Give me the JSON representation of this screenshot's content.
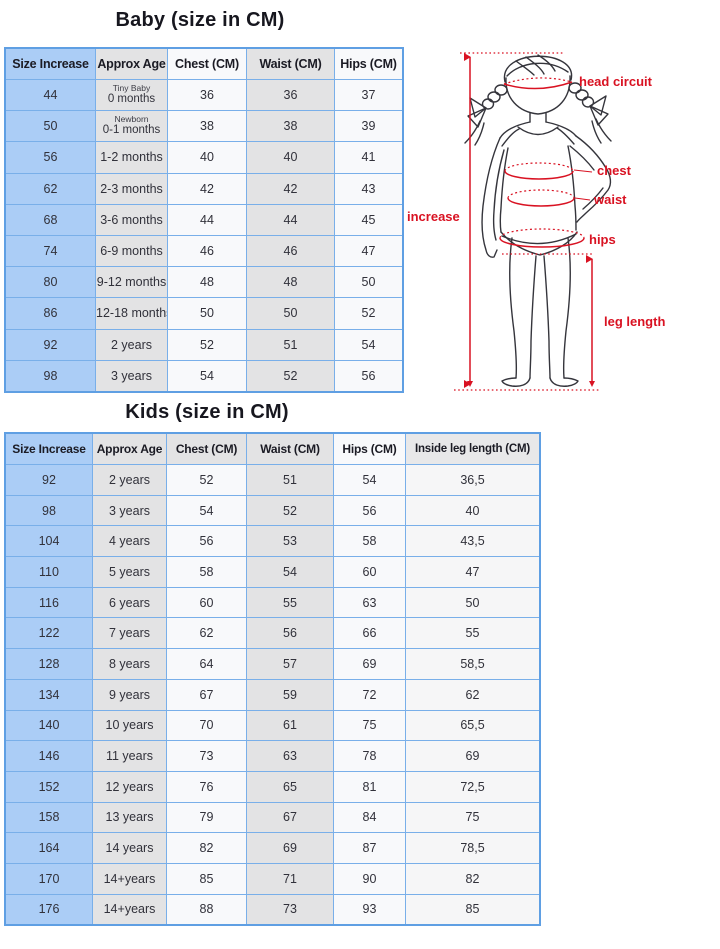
{
  "baby": {
    "title": "Baby (size in CM)",
    "headers": [
      "Size Increase",
      "Approx Age",
      "Chest (CM)",
      "Waist (CM)",
      "Hips (CM)"
    ],
    "rows": [
      [
        "44",
        {
          "note": "Tiny Baby",
          "text": "0 months"
        },
        "36",
        "36",
        "37"
      ],
      [
        "50",
        {
          "note": "Newborn",
          "text": "0-1 months"
        },
        "38",
        "38",
        "39"
      ],
      [
        "56",
        "1-2 months",
        "40",
        "40",
        "41"
      ],
      [
        "62",
        "2-3 months",
        "42",
        "42",
        "43"
      ],
      [
        "68",
        "3-6 months",
        "44",
        "44",
        "45"
      ],
      [
        "74",
        "6-9 months",
        "46",
        "46",
        "47"
      ],
      [
        "80",
        "9-12 months",
        "48",
        "48",
        "50"
      ],
      [
        "86",
        "12-18 months",
        "50",
        "50",
        "52"
      ],
      [
        "92",
        "2 years",
        "52",
        "51",
        "54"
      ],
      [
        "98",
        "3 years",
        "54",
        "52",
        "56"
      ]
    ]
  },
  "kids": {
    "title": "Kids (size in CM)",
    "headers": [
      "Size Increase",
      "Approx Age",
      "Chest (CM)",
      "Waist (CM)",
      "Hips (CM)",
      "Inside leg length (CM)"
    ],
    "rows": [
      [
        "92",
        "2 years",
        "52",
        "51",
        "54",
        "36,5"
      ],
      [
        "98",
        "3 years",
        "54",
        "52",
        "56",
        "40"
      ],
      [
        "104",
        "4 years",
        "56",
        "53",
        "58",
        "43,5"
      ],
      [
        "110",
        "5 years",
        "58",
        "54",
        "60",
        "47"
      ],
      [
        "116",
        "6 years",
        "60",
        "55",
        "63",
        "50"
      ],
      [
        "122",
        "7 years",
        "62",
        "56",
        "66",
        "55"
      ],
      [
        "128",
        "8 years",
        "64",
        "57",
        "69",
        "58,5"
      ],
      [
        "134",
        "9 years",
        "67",
        "59",
        "72",
        "62"
      ],
      [
        "140",
        "10 years",
        "70",
        "61",
        "75",
        "65,5"
      ],
      [
        "146",
        "11 years",
        "73",
        "63",
        "78",
        "69"
      ],
      [
        "152",
        "12 years",
        "76",
        "65",
        "81",
        "72,5"
      ],
      [
        "158",
        "13 years",
        "79",
        "67",
        "84",
        "75"
      ],
      [
        "164",
        "14 years",
        "82",
        "69",
        "87",
        "78,5"
      ],
      [
        "170",
        "14+years",
        "85",
        "71",
        "90",
        "82"
      ],
      [
        "176",
        "14+years",
        "88",
        "73",
        "93",
        "85"
      ]
    ]
  },
  "figure": {
    "labels": {
      "head_circuit": "head circuit",
      "chest": "chest",
      "waist": "waist",
      "hips": "hips",
      "leg_length": "leg length",
      "increase": "increase"
    },
    "accent_color": "#d91222"
  },
  "colors": {
    "size_column_blue": "#abcdf6",
    "gray_column": "#e3e3e4",
    "table_border_blue": "#5f9fe3",
    "annotation_red": "#d91222"
  }
}
